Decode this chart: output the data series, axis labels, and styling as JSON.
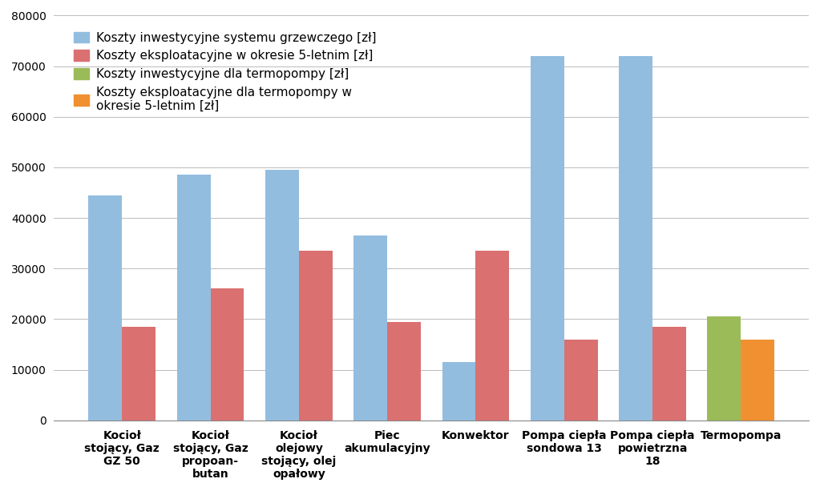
{
  "categories": [
    "Kocioł\nstojący, Gaz\nGZ 50",
    "Kocioł\nstojący, Gaz\npropoan-\nbutan",
    "Kocioł\nolejowy\nstojący, olej\nopałowy",
    "Piec\nakumulacyjny",
    "Konwektor",
    "Pompa ciepła\nsondowa 13",
    "Pompa ciepła\npowietrzna\n18",
    "Termopompa"
  ],
  "series": [
    {
      "name": "Koszty inwestycyjne systemu grzewczego [zł]",
      "color": "#92BDDF",
      "values": [
        44500,
        48500,
        49500,
        36500,
        11500,
        72000,
        72000,
        0
      ]
    },
    {
      "name": "Koszty eksploatacyjne w okresie 5-letnim [zł]",
      "color": "#DA7070",
      "values": [
        18500,
        26000,
        33500,
        19500,
        33500,
        16000,
        18500,
        0
      ]
    },
    {
      "name": "Koszty inwestycyjne dla termopompy [zł]",
      "color": "#9BBB59",
      "values": [
        0,
        0,
        0,
        0,
        0,
        0,
        0,
        20500
      ]
    },
    {
      "name": "Koszty eksploatacyjne dla termopompy w\nokresie 5-letnim [zł]",
      "color": "#F09030",
      "values": [
        0,
        0,
        0,
        0,
        0,
        0,
        0,
        16000
      ]
    }
  ],
  "ylim": [
    0,
    80000
  ],
  "yticks": [
    0,
    10000,
    20000,
    30000,
    40000,
    50000,
    60000,
    70000,
    80000
  ],
  "bg_color": "#FFFFFF",
  "grid_color": "#BBBBBB",
  "bar_width": 0.38,
  "legend_fontsize": 11,
  "tick_fontsize": 10,
  "xlabel_fontsize": 10,
  "ylabel_fontsize": 10
}
